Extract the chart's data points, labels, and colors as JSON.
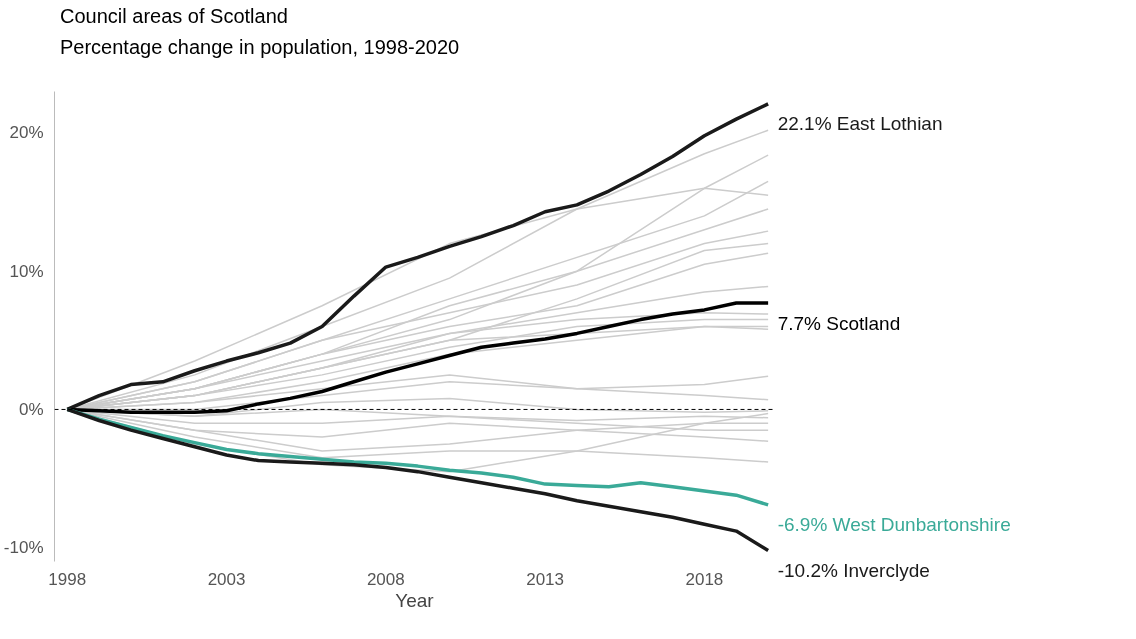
{
  "chart_data": {
    "type": "line",
    "title": "Council areas of Scotland",
    "subtitle": "Percentage change in population, 1998-2020",
    "xlabel": "Year",
    "x": [
      1998,
      1999,
      2000,
      2001,
      2002,
      2003,
      2004,
      2005,
      2006,
      2007,
      2008,
      2009,
      2010,
      2011,
      2012,
      2013,
      2014,
      2015,
      2016,
      2017,
      2018,
      2019,
      2020
    ],
    "xlim": [
      1997.6,
      2020.2
    ],
    "xticks": [
      1998,
      2003,
      2008,
      2013,
      2018
    ],
    "ylim": [
      -11,
      23
    ],
    "yticks": [
      {
        "value": -10,
        "label": "-10%"
      },
      {
        "value": 0,
        "label": "0%"
      },
      {
        "value": 10,
        "label": "10%"
      },
      {
        "value": 20,
        "label": "20%"
      }
    ],
    "grid": false,
    "ref_lines": [
      {
        "axis": "y",
        "value": 0,
        "label": null,
        "color": "#000000",
        "line_style": "dashed"
      }
    ],
    "series": [
      {
        "color": "#cccccc",
        "x": [
          1998,
          2002,
          2006,
          2010,
          2014,
          2018,
          2020
        ],
        "values": [
          0,
          3.5,
          7.5,
          12,
          14.5,
          18.5,
          20.2
        ]
      },
      {
        "color": "#cccccc",
        "x": [
          1998,
          2002,
          2006,
          2010,
          2014,
          2018,
          2020
        ],
        "values": [
          0,
          1.5,
          4,
          6.5,
          10,
          16,
          18.4
        ]
      },
      {
        "color": "#cccccc",
        "x": [
          1998,
          2002,
          2006,
          2010,
          2014,
          2018,
          2020
        ],
        "values": [
          0,
          2,
          5,
          8,
          11,
          14,
          16.5
        ]
      },
      {
        "color": "#cccccc",
        "x": [
          1998,
          2002,
          2006,
          2010,
          2014,
          2018,
          2020
        ],
        "values": [
          0,
          2.5,
          6,
          9.5,
          14.5,
          16,
          15.5
        ]
      },
      {
        "color": "#cccccc",
        "x": [
          1998,
          2002,
          2006,
          2010,
          2014,
          2018,
          2020
        ],
        "values": [
          0,
          1.5,
          4,
          7.5,
          10,
          13,
          14.5
        ]
      },
      {
        "color": "#cccccc",
        "x": [
          1998,
          2002,
          2006,
          2010,
          2014,
          2018,
          2020
        ],
        "values": [
          0,
          2,
          5,
          7,
          9,
          12,
          12.9
        ]
      },
      {
        "color": "#cccccc",
        "x": [
          1998,
          2002,
          2006,
          2010,
          2014,
          2018,
          2020
        ],
        "values": [
          0,
          1,
          3,
          5,
          8,
          11.5,
          12
        ]
      },
      {
        "color": "#cccccc",
        "x": [
          1998,
          2002,
          2006,
          2010,
          2014,
          2018,
          2020
        ],
        "values": [
          0,
          1.5,
          4,
          6,
          7.5,
          10.5,
          11.3
        ]
      },
      {
        "color": "#cccccc",
        "x": [
          1998,
          2002,
          2006,
          2010,
          2014,
          2018,
          2020
        ],
        "values": [
          0,
          1,
          3,
          5.5,
          7,
          8.5,
          8.9
        ]
      },
      {
        "color": "#cccccc",
        "x": [
          1998,
          2002,
          2006,
          2010,
          2014,
          2018,
          2020
        ],
        "values": [
          0,
          1.5,
          3.5,
          5.5,
          6.5,
          7,
          6.9
        ]
      },
      {
        "color": "#cccccc",
        "x": [
          1998,
          2002,
          2006,
          2010,
          2014,
          2018,
          2020
        ],
        "values": [
          0,
          1,
          2.5,
          4.5,
          6,
          6.5,
          6.5
        ]
      },
      {
        "color": "#cccccc",
        "x": [
          1998,
          2002,
          2006,
          2010,
          2014,
          2018,
          2020
        ],
        "values": [
          0,
          0.5,
          2,
          4,
          5,
          6,
          6
        ]
      },
      {
        "color": "#cccccc",
        "x": [
          1998,
          2002,
          2006,
          2010,
          2014,
          2018,
          2020
        ],
        "values": [
          0,
          1,
          3,
          5,
          5.5,
          6,
          5.8
        ]
      },
      {
        "color": "#cccccc",
        "x": [
          1998,
          2002,
          2006,
          2010,
          2014,
          2018,
          2020
        ],
        "values": [
          0,
          0.5,
          1.5,
          2.5,
          1.5,
          1.8,
          2.4
        ]
      },
      {
        "color": "#cccccc",
        "x": [
          1998,
          2002,
          2006,
          2010,
          2014,
          2018,
          2020
        ],
        "values": [
          0,
          0,
          1,
          2,
          1.5,
          1,
          0.7
        ]
      },
      {
        "color": "#cccccc",
        "x": [
          1998,
          2002,
          2006,
          2010,
          2014,
          2018,
          2020
        ],
        "values": [
          0,
          -0.5,
          0.5,
          0.8,
          0,
          -0.2,
          -0.1
        ]
      },
      {
        "color": "#cccccc",
        "x": [
          1998,
          2002,
          2006,
          2010,
          2014,
          2018,
          2020
        ],
        "values": [
          0,
          -1,
          -1,
          -0.5,
          -0.8,
          -0.5,
          -0.6
        ]
      },
      {
        "color": "#cccccc",
        "x": [
          1998,
          2002,
          2006,
          2010,
          2014,
          2018,
          2020
        ],
        "values": [
          0,
          -0.5,
          0,
          -0.5,
          -1,
          -1.5,
          -1.5
        ]
      },
      {
        "color": "#cccccc",
        "x": [
          1998,
          2002,
          2006,
          2010,
          2014,
          2018,
          2020
        ],
        "values": [
          0,
          -1.5,
          -2,
          -1,
          -1.5,
          -2,
          -2.3
        ]
      },
      {
        "color": "#cccccc",
        "x": [
          1998,
          2002,
          2006,
          2010,
          2014,
          2018,
          2020
        ],
        "values": [
          0,
          -2,
          -3.5,
          -3,
          -3,
          -3.5,
          -3.8
        ]
      },
      {
        "color": "#cccccc",
        "x": [
          1998,
          2002,
          2006,
          2010,
          2014,
          2018,
          2020
        ],
        "values": [
          0,
          -1.5,
          -3,
          -2.5,
          -1.5,
          -1,
          -1
        ]
      },
      {
        "color": "#cccccc",
        "x": [
          1998,
          2002,
          2006,
          2010,
          2014,
          2018,
          2020
        ],
        "values": [
          0,
          -2.5,
          -4,
          -4.5,
          -3,
          -1,
          -0.3
        ]
      },
      {
        "name": "East Lothian",
        "color": "#1a1a1a",
        "values": [
          0,
          1,
          1.8,
          2.0,
          2.8,
          3.5,
          4.1,
          4.8,
          6.0,
          8.2,
          10.3,
          11.0,
          11.8,
          12.5,
          13.3,
          14.3,
          14.8,
          15.8,
          17.0,
          18.3,
          19.8,
          21.0,
          22.1
        ],
        "value_labels": [
          null,
          null,
          null,
          null,
          null,
          null,
          null,
          null,
          null,
          null,
          null,
          null,
          null,
          null,
          null,
          null,
          null,
          null,
          null,
          null,
          null,
          null,
          "22.1%"
        ]
      },
      {
        "name": "Scotland",
        "color": "#000000",
        "values": [
          0,
          -0.1,
          -0.2,
          -0.2,
          -0.2,
          -0.1,
          0.4,
          0.8,
          1.3,
          2.0,
          2.7,
          3.3,
          3.9,
          4.5,
          4.8,
          5.1,
          5.5,
          6.0,
          6.5,
          6.9,
          7.2,
          7.7,
          7.7
        ],
        "value_labels": [
          null,
          null,
          null,
          null,
          null,
          null,
          null,
          null,
          null,
          null,
          null,
          null,
          null,
          null,
          null,
          null,
          null,
          null,
          null,
          null,
          null,
          null,
          "7.7%"
        ]
      },
      {
        "name": "West Dunbartonshire",
        "color": "#3aaa98",
        "values": [
          0,
          -0.7,
          -1.3,
          -1.9,
          -2.4,
          -2.9,
          -3.2,
          -3.4,
          -3.6,
          -3.8,
          -3.9,
          -4.1,
          -4.4,
          -4.6,
          -4.9,
          -5.4,
          -5.5,
          -5.6,
          -5.3,
          -5.6,
          -5.9,
          -6.2,
          -6.9
        ],
        "value_labels": [
          null,
          null,
          null,
          null,
          null,
          null,
          null,
          null,
          null,
          null,
          null,
          null,
          null,
          null,
          null,
          null,
          null,
          null,
          null,
          null,
          null,
          null,
          "-6.9%"
        ]
      },
      {
        "name": "Inverclyde",
        "color": "#1a1a1a",
        "values": [
          0,
          -0.8,
          -1.5,
          -2.1,
          -2.7,
          -3.3,
          -3.7,
          -3.8,
          -3.9,
          -4.0,
          -4.2,
          -4.5,
          -4.9,
          -5.3,
          -5.7,
          -6.1,
          -6.6,
          -7.0,
          -7.4,
          -7.8,
          -8.3,
          -8.8,
          -10.2
        ],
        "value_labels": [
          null,
          null,
          null,
          null,
          null,
          null,
          null,
          null,
          null,
          null,
          null,
          null,
          null,
          null,
          null,
          null,
          null,
          null,
          null,
          null,
          null,
          null,
          "-10.2%"
        ]
      }
    ]
  }
}
